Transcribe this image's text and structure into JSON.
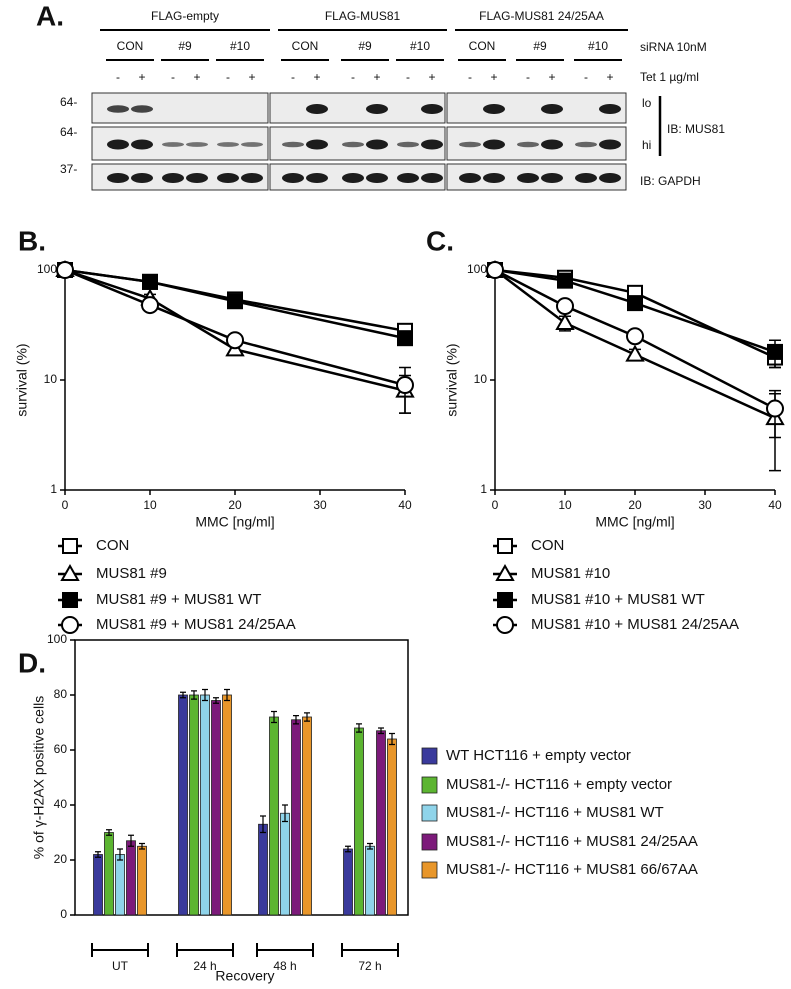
{
  "panel_a": {
    "label": "A.",
    "groups": [
      {
        "name": "FLAG-empty",
        "sirna": [
          "CON",
          "#9",
          "#10"
        ]
      },
      {
        "name": "FLAG-MUS81",
        "sirna": [
          "CON",
          "#9",
          "#10"
        ]
      },
      {
        "name": "FLAG-MUS81 24/25AA",
        "sirna": [
          "CON",
          "#9",
          "#10"
        ]
      }
    ],
    "tet": [
      "-",
      "+"
    ],
    "sirna_label": "siRNA 10nM",
    "tet_label": "Tet 1 µg/ml",
    "markers": [
      "64-",
      "64-",
      "37-"
    ],
    "exposures": [
      "lo",
      "hi"
    ],
    "ib_mus81": "IB: MUS81",
    "ib_gapdh": "IB: GAPDH"
  },
  "chart_data": [
    {
      "type": "line",
      "panel_label": "B.",
      "xlabel": "MMC [ng/ml]",
      "ylabel": "survival (%)",
      "x": [
        0,
        10,
        20,
        40
      ],
      "xlim": [
        0,
        40
      ],
      "xticks": [
        0,
        10,
        20,
        30,
        40
      ],
      "ylim": [
        1,
        100
      ],
      "yticks": [
        1,
        10,
        100
      ],
      "log_y": true,
      "series": [
        {
          "name": "CON",
          "color": "#000000",
          "marker": "square-open",
          "values": [
            100,
            78,
            54,
            28
          ],
          "errors": [
            null,
            null,
            null,
            3
          ]
        },
        {
          "name": "MUS81 #9",
          "color": "#000000",
          "marker": "triangle-open",
          "values": [
            100,
            55,
            19,
            8
          ],
          "errors": [
            null,
            5,
            2,
            3
          ]
        },
        {
          "name": "MUS81 #9 + MUS81 WT",
          "color": "#000000",
          "marker": "square-filled",
          "values": [
            100,
            78,
            52,
            24
          ],
          "errors": [
            null,
            null,
            4,
            2
          ]
        },
        {
          "name": "MUS81 #9 + MUS81 24/25AA",
          "color": "#000000",
          "marker": "circle-open",
          "values": [
            100,
            48,
            23,
            9
          ],
          "errors": [
            null,
            null,
            null,
            4
          ]
        }
      ]
    },
    {
      "type": "line",
      "panel_label": "C.",
      "xlabel": "MMC [ng/ml]",
      "ylabel": "survival (%)",
      "x": [
        0,
        10,
        20,
        40
      ],
      "xlim": [
        0,
        40
      ],
      "xticks": [
        0,
        10,
        20,
        30,
        40
      ],
      "ylim": [
        1,
        100
      ],
      "yticks": [
        1,
        10,
        100
      ],
      "log_y": true,
      "series": [
        {
          "name": "CON",
          "color": "#000000",
          "marker": "square-open",
          "values": [
            100,
            85,
            62,
            16
          ],
          "errors": [
            null,
            null,
            null,
            3
          ]
        },
        {
          "name": "MUS81 #10",
          "color": "#000000",
          "marker": "triangle-open",
          "values": [
            100,
            33,
            17,
            4.5
          ],
          "errors": [
            null,
            5,
            2,
            3
          ]
        },
        {
          "name": "MUS81 #10 + MUS81 WT",
          "color": "#000000",
          "marker": "square-filled",
          "values": [
            100,
            80,
            50,
            18
          ],
          "errors": [
            null,
            null,
            null,
            5
          ]
        },
        {
          "name": "MUS81 #10 + MUS81 24/25AA",
          "color": "#000000",
          "marker": "circle-open",
          "values": [
            100,
            47,
            25,
            5.5
          ],
          "errors": [
            null,
            null,
            null,
            2.5
          ]
        }
      ]
    },
    {
      "type": "bar",
      "panel_label": "D.",
      "xlabel": "Recovery",
      "ylabel": "% of γ-H2AX positive cells",
      "categories": [
        "UT",
        "24 h",
        "48 h",
        "72 h"
      ],
      "ylim": [
        0,
        100
      ],
      "yticks": [
        0,
        20,
        40,
        60,
        80,
        100
      ],
      "legend": "right",
      "series": [
        {
          "name": "WT HCT116 + empty vector",
          "color": "#3a3a9c",
          "values": [
            22,
            80,
            33,
            24
          ],
          "errors": [
            1,
            1,
            3,
            1
          ]
        },
        {
          "name": "MUS81-/- HCT116 + empty vector",
          "color": "#5cb531",
          "values": [
            30,
            80,
            72,
            68
          ],
          "errors": [
            1,
            1.5,
            2,
            1.5
          ]
        },
        {
          "name": "MUS81-/- HCT116 + MUS81 WT",
          "color": "#8fd4ea",
          "values": [
            22,
            80,
            37,
            25
          ],
          "errors": [
            2,
            2,
            3,
            1
          ]
        },
        {
          "name": "MUS81-/- HCT116 + MUS81 24/25AA",
          "color": "#7c1a7a",
          "values": [
            27,
            78,
            71,
            67
          ],
          "errors": [
            2,
            1,
            1.5,
            1
          ]
        },
        {
          "name": "MUS81-/- HCT116 + MUS81 66/67AA",
          "color": "#e8962a",
          "values": [
            25,
            80,
            72,
            64
          ],
          "errors": [
            1,
            2,
            1.5,
            2
          ]
        }
      ]
    }
  ]
}
